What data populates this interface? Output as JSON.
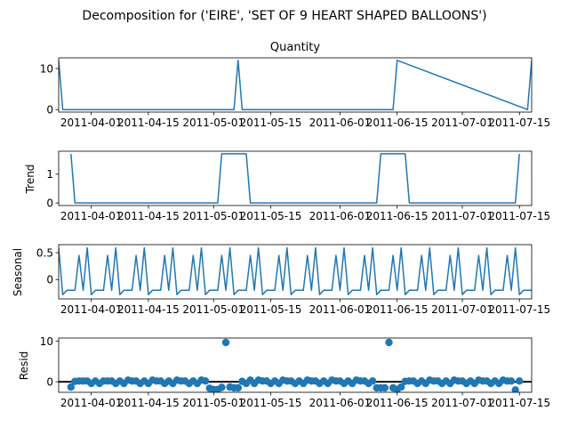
{
  "figure": {
    "suptitle": "Decomposition for ('EIRE', 'SET OF 9 HEART SHAPED BALLOONS')"
  },
  "chart_data": [
    {
      "type": "line",
      "panel": "observed",
      "title": "Quantity",
      "ylabel": "",
      "xlim": [
        "2011-03-24",
        "2011-07-18"
      ],
      "ylim": [
        -0.6,
        12.6
      ],
      "yticks": [
        0,
        10
      ],
      "xticks": [
        "2011-04-01",
        "2011-04-15",
        "2011-05-01",
        "2011-05-15",
        "2011-06-01",
        "2011-06-15",
        "2011-07-01",
        "2011-07-15"
      ],
      "color": "#1f77b4",
      "series": [
        {
          "x": [
            "2011-03-24",
            "2011-03-25",
            "2011-05-06",
            "2011-05-07",
            "2011-05-08",
            "2011-06-13",
            "2011-06-14",
            "2011-06-15",
            "2011-07-17",
            "2011-07-18"
          ],
          "values": [
            12,
            0,
            0,
            12,
            0,
            0,
            0,
            12,
            0,
            12
          ]
        }
      ]
    },
    {
      "type": "line",
      "panel": "trend",
      "title": "",
      "ylabel": "Trend",
      "xlim": [
        "2011-03-24",
        "2011-07-18"
      ],
      "ylim": [
        -0.09,
        1.8
      ],
      "yticks": [
        0,
        1
      ],
      "xticks": [
        "2011-04-01",
        "2011-04-15",
        "2011-05-01",
        "2011-05-15",
        "2011-06-01",
        "2011-06-15",
        "2011-07-01",
        "2011-07-15"
      ],
      "color": "#1f77b4",
      "series": [
        {
          "x": [
            "2011-03-27",
            "2011-03-28",
            "2011-05-02",
            "2011-05-03",
            "2011-05-09",
            "2011-05-10",
            "2011-06-10",
            "2011-06-11",
            "2011-06-17",
            "2011-06-18",
            "2011-07-14",
            "2011-07-15"
          ],
          "values": [
            1.71,
            0,
            0,
            1.71,
            1.71,
            0,
            0,
            1.71,
            1.71,
            0,
            0,
            1.71
          ]
        }
      ]
    },
    {
      "type": "line",
      "panel": "seasonal",
      "title": "",
      "ylabel": "Seasonal",
      "xlim": [
        "2011-03-24",
        "2011-07-18"
      ],
      "ylim": [
        -0.36,
        0.65
      ],
      "yticks": [
        0.0,
        0.5
      ],
      "xticks": [
        "2011-04-01",
        "2011-04-15",
        "2011-05-01",
        "2011-05-15",
        "2011-06-01",
        "2011-06-15",
        "2011-07-01",
        "2011-07-15"
      ],
      "color": "#1f77b4",
      "period": 7,
      "pattern": [
        0.59,
        -0.28,
        -0.2,
        -0.2,
        -0.2,
        0.45,
        -0.2
      ]
    },
    {
      "type": "scatter",
      "panel": "resid",
      "title": "",
      "ylabel": "Resid",
      "xlim": [
        "2011-03-24",
        "2011-07-18"
      ],
      "ylim": [
        -2.6,
        10.8
      ],
      "yticks": [
        0,
        10
      ],
      "xticks": [
        "2011-04-01",
        "2011-04-15",
        "2011-05-01",
        "2011-05-15",
        "2011-06-01",
        "2011-06-15",
        "2011-07-01",
        "2011-07-15"
      ],
      "color": "#1f77b4",
      "baseline": 0,
      "series": [
        {
          "x": [
            "2011-03-27",
            "2011-03-28",
            "2011-03-29",
            "2011-03-30",
            "2011-03-31",
            "2011-04-01",
            "2011-04-02",
            "2011-04-03",
            "2011-04-04",
            "2011-04-05",
            "2011-04-06",
            "2011-04-07",
            "2011-04-08",
            "2011-04-09",
            "2011-04-10",
            "2011-04-11",
            "2011-04-12",
            "2011-04-13",
            "2011-04-14",
            "2011-04-15",
            "2011-04-16",
            "2011-04-17",
            "2011-04-18",
            "2011-04-19",
            "2011-04-20",
            "2011-04-21",
            "2011-04-22",
            "2011-04-23",
            "2011-04-24",
            "2011-04-25",
            "2011-04-26",
            "2011-04-27",
            "2011-04-28",
            "2011-04-29",
            "2011-04-30",
            "2011-05-01",
            "2011-05-02",
            "2011-05-03",
            "2011-05-04",
            "2011-05-05",
            "2011-05-06",
            "2011-05-07",
            "2011-05-08",
            "2011-05-09",
            "2011-05-10",
            "2011-05-11",
            "2011-05-12",
            "2011-05-13",
            "2011-05-14",
            "2011-05-15",
            "2011-05-16",
            "2011-05-17",
            "2011-05-18",
            "2011-05-19",
            "2011-05-20",
            "2011-05-21",
            "2011-05-22",
            "2011-05-23",
            "2011-05-24",
            "2011-05-25",
            "2011-05-26",
            "2011-05-27",
            "2011-05-28",
            "2011-05-29",
            "2011-05-30",
            "2011-05-31",
            "2011-06-01",
            "2011-06-02",
            "2011-06-03",
            "2011-06-04",
            "2011-06-05",
            "2011-06-06",
            "2011-06-07",
            "2011-06-08",
            "2011-06-09",
            "2011-06-10",
            "2011-06-11",
            "2011-06-12",
            "2011-06-13",
            "2011-06-14",
            "2011-06-15",
            "2011-06-16",
            "2011-06-17",
            "2011-06-18",
            "2011-06-19",
            "2011-06-20",
            "2011-06-21",
            "2011-06-22",
            "2011-06-23",
            "2011-06-24",
            "2011-06-25",
            "2011-06-26",
            "2011-06-27",
            "2011-06-28",
            "2011-06-29",
            "2011-06-30",
            "2011-07-01",
            "2011-07-02",
            "2011-07-03",
            "2011-07-04",
            "2011-07-05",
            "2011-07-06",
            "2011-07-07",
            "2011-07-08",
            "2011-07-09",
            "2011-07-10",
            "2011-07-11",
            "2011-07-12",
            "2011-07-13",
            "2011-07-14",
            "2011-07-15"
          ],
          "values": [
            -1.3,
            0.1,
            0.2,
            0.2,
            0.2,
            -0.4,
            0.2,
            -0.4,
            0.2,
            0.2,
            0.2,
            -0.4,
            0.2,
            -0.4,
            0.4,
            0.2,
            0.2,
            -0.4,
            0.2,
            -0.4,
            0.4,
            0.2,
            0.2,
            -0.4,
            0.2,
            -0.4,
            0.4,
            0.2,
            0.2,
            -0.4,
            0.2,
            -0.4,
            0.4,
            0.2,
            -1.6,
            -1.9,
            -1.9,
            -1.4,
            9.7,
            -1.3,
            -1.5,
            -1.5,
            0.1,
            -0.4,
            0.4,
            -0.4,
            0.4,
            0.2,
            0.2,
            -0.4,
            0.2,
            -0.4,
            0.4,
            0.2,
            0.2,
            -0.4,
            0.2,
            -0.4,
            0.4,
            0.2,
            0.2,
            -0.4,
            0.2,
            -0.4,
            0.4,
            0.2,
            0.2,
            -0.4,
            0.2,
            -0.4,
            0.4,
            0.2,
            0.2,
            -0.4,
            0.2,
            -1.5,
            -1.5,
            -1.5,
            9.7,
            -1.5,
            -1.9,
            -1.3,
            0.1,
            0.2,
            0.2,
            -0.4,
            0.2,
            -0.4,
            0.4,
            0.2,
            0.2,
            -0.4,
            0.2,
            -0.4,
            0.4,
            0.2,
            0.2,
            -0.4,
            0.2,
            -0.4,
            0.4,
            0.2,
            0.2,
            -0.4,
            0.2,
            -0.4,
            0.4,
            0.2,
            0.2,
            -2.0,
            0.2
          ]
        }
      ]
    }
  ]
}
